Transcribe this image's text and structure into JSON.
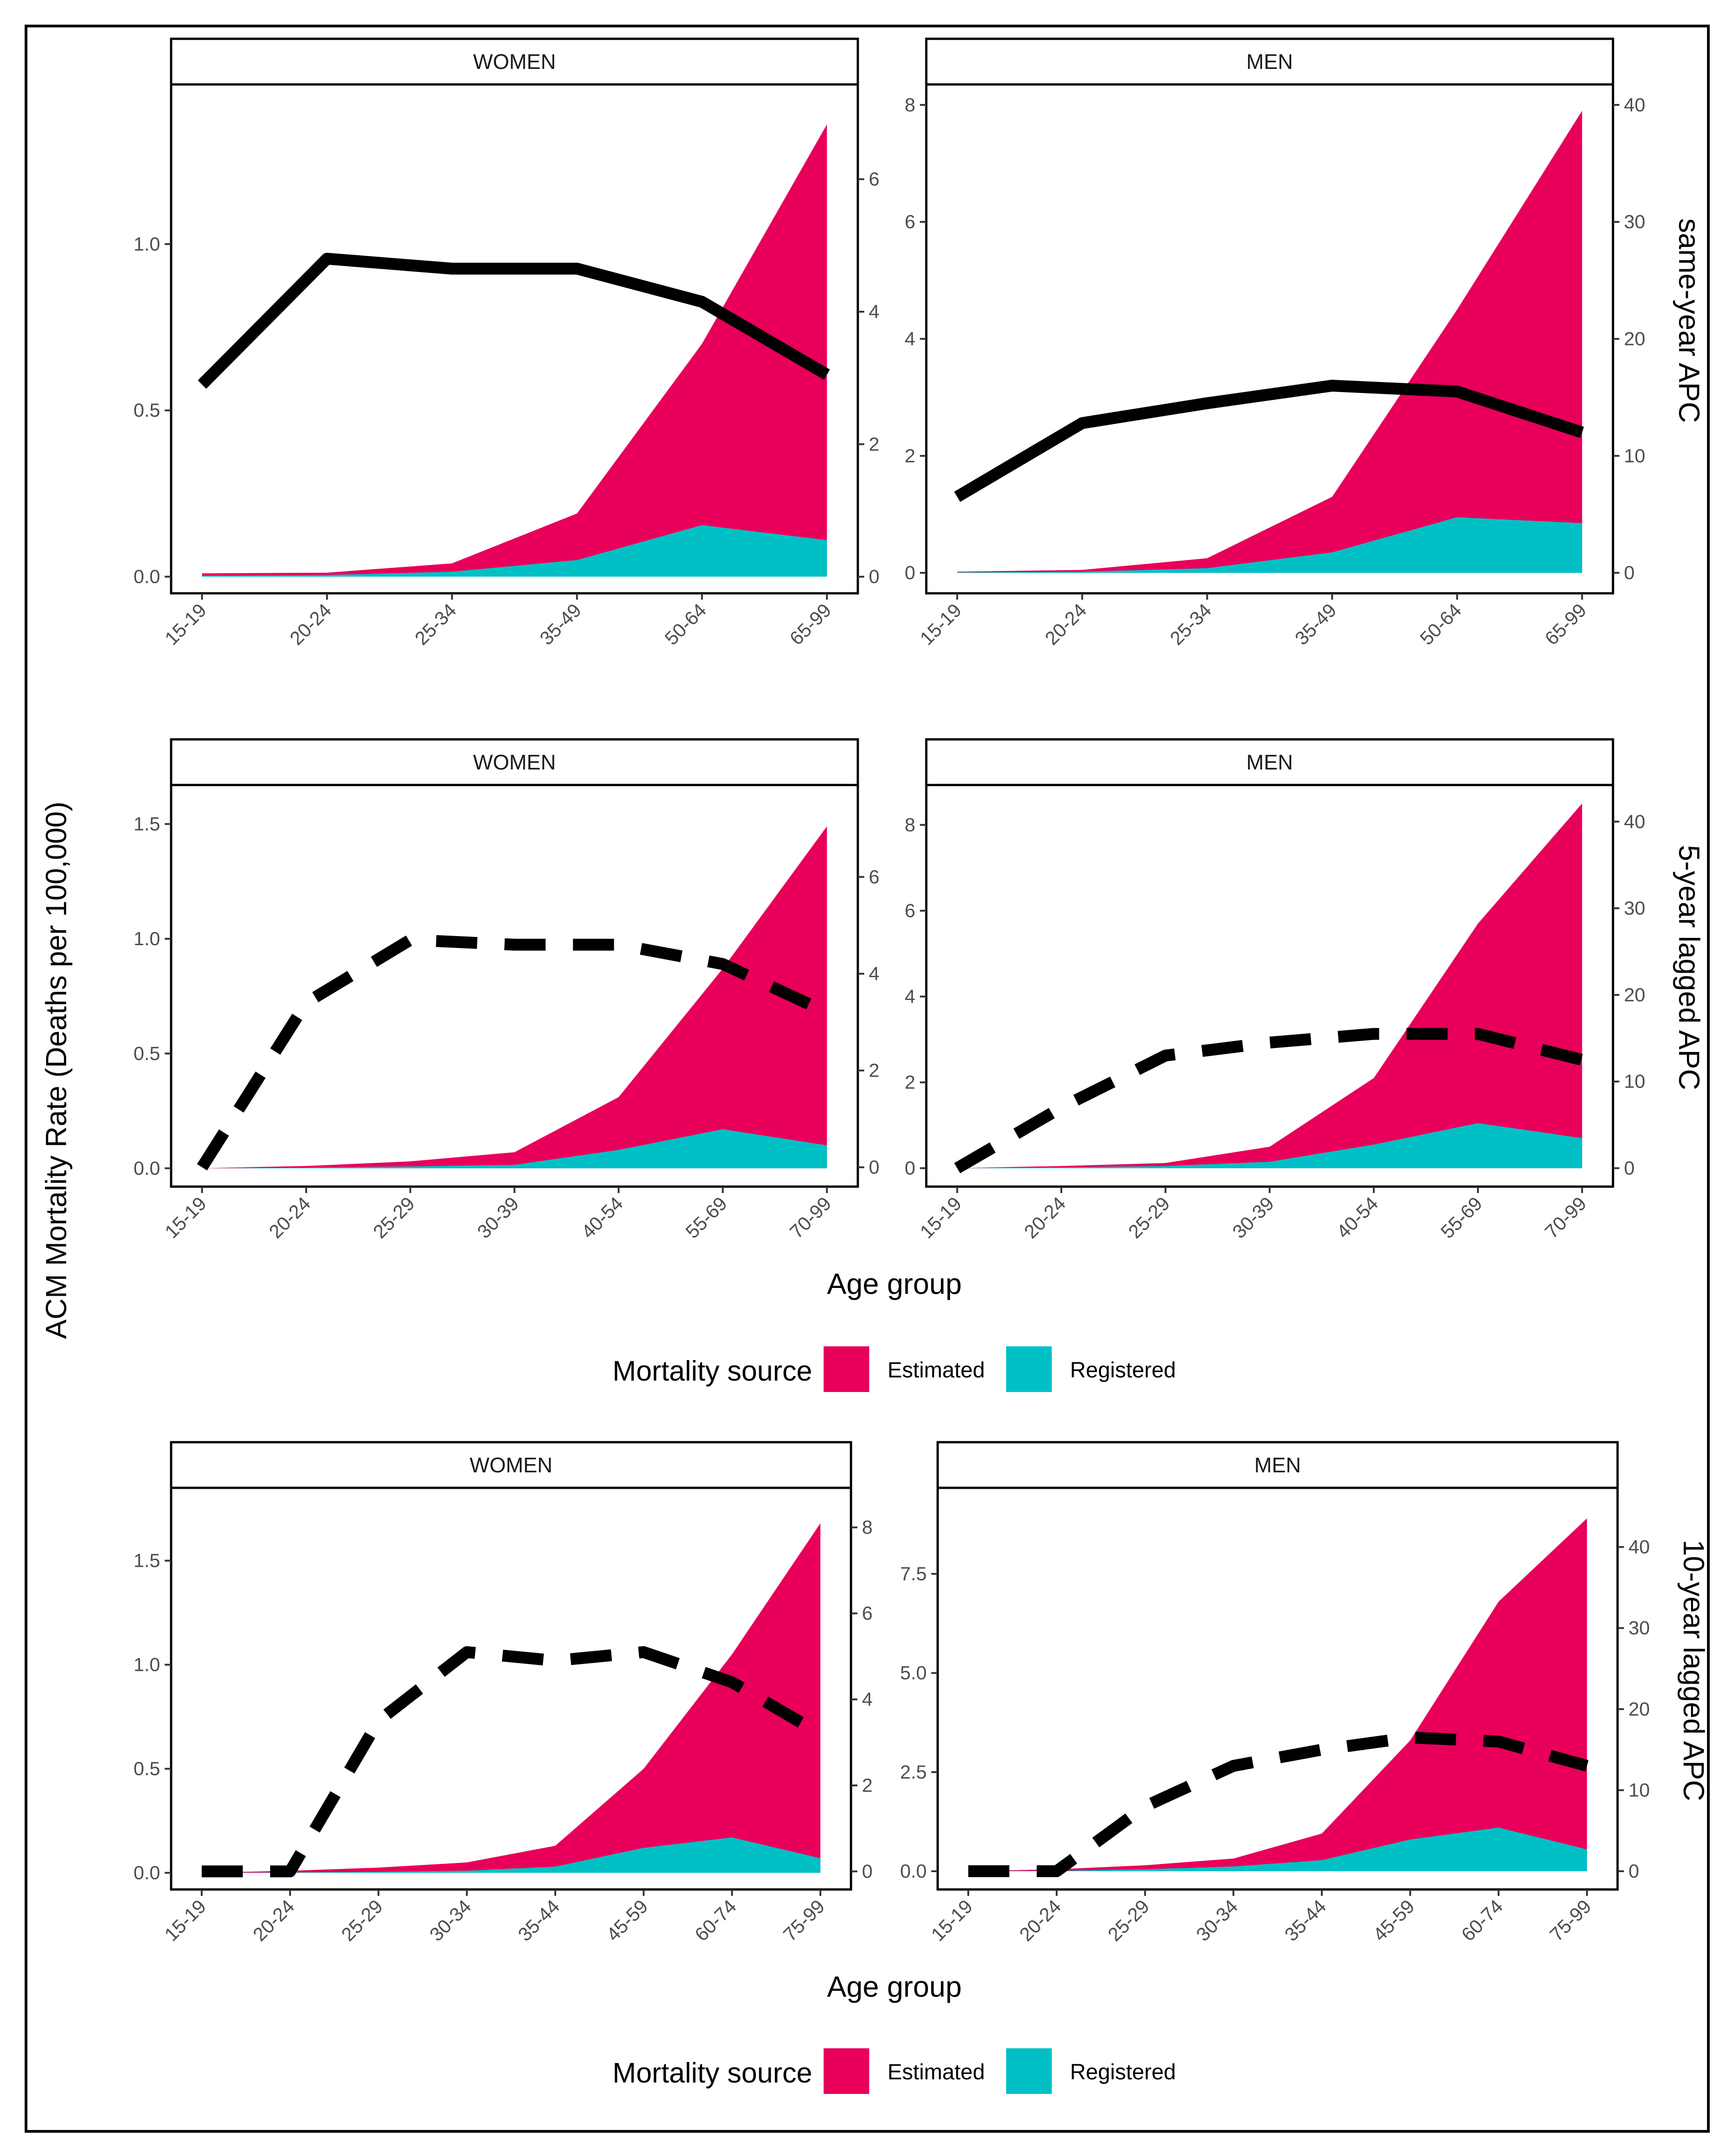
{
  "figure": {
    "y_axis_title": "ACM Mortality Rate (Deaths per 100,000)",
    "x_axis_title": "Age group",
    "legend": {
      "title": "Mortality source",
      "items": [
        {
          "label": "Estimated",
          "color": "#E8005A"
        },
        {
          "label": "Registered",
          "color": "#00C0C6"
        }
      ]
    },
    "line_color": "#000000"
  },
  "chart_data": [
    {
      "type": "area",
      "row": 1,
      "panel": "women",
      "strip": "WOMEN",
      "categories": [
        "15-19",
        "20-24",
        "25-34",
        "35-49",
        "50-64",
        "65-99"
      ],
      "series": [
        {
          "name": "Registered",
          "values": [
            0.003,
            0.005,
            0.015,
            0.05,
            0.155,
            0.11
          ]
        },
        {
          "name": "Estimated",
          "values": [
            0.01,
            0.012,
            0.04,
            0.19,
            0.7,
            1.36
          ]
        }
      ],
      "ylim": [
        -0.05,
        1.48
      ],
      "yticks": [
        0.0,
        0.5,
        1.0
      ],
      "ytick_labels": [
        "0.0",
        "0.5",
        "1.0"
      ],
      "line": {
        "name": "same-year APC",
        "style": "solid",
        "values": [
          2.9,
          4.8,
          4.65,
          4.65,
          4.15,
          3.05
        ]
      },
      "y2lim": [
        -0.25,
        7.43
      ],
      "y2ticks": [
        0,
        2,
        4,
        6
      ],
      "y2tick_labels": [
        "0",
        "2",
        "4",
        "6"
      ]
    },
    {
      "type": "area",
      "row": 1,
      "panel": "men",
      "strip": "MEN",
      "categories": [
        "15-19",
        "20-24",
        "25-34",
        "35-49",
        "50-64",
        "65-99"
      ],
      "series": [
        {
          "name": "Registered",
          "values": [
            0.01,
            0.02,
            0.08,
            0.35,
            0.95,
            0.85
          ]
        },
        {
          "name": "Estimated",
          "values": [
            0.02,
            0.05,
            0.25,
            1.3,
            4.5,
            7.9
          ]
        }
      ],
      "ylim": [
        -0.35,
        8.35
      ],
      "yticks": [
        0,
        2,
        4,
        6,
        8
      ],
      "ytick_labels": [
        "0",
        "2",
        "4",
        "6",
        "8"
      ],
      "line": {
        "name": "same-year APC",
        "style": "solid",
        "values": [
          6.5,
          12.8,
          14.5,
          16,
          15.5,
          12
        ]
      },
      "y2lim": [
        -1.75,
        41.75
      ],
      "y2ticks": [
        0,
        10,
        20,
        30,
        40
      ],
      "y2tick_labels": [
        "0",
        "10",
        "20",
        "30",
        "40"
      ],
      "y2label": "same-year APC"
    },
    {
      "type": "area",
      "row": 2,
      "panel": "women",
      "strip": "WOMEN",
      "categories": [
        "15-19",
        "20-24",
        "25-29",
        "30-39",
        "40-54",
        "55-69",
        "70-99"
      ],
      "series": [
        {
          "name": "Registered",
          "values": [
            0.0,
            0.003,
            0.008,
            0.015,
            0.08,
            0.17,
            0.1
          ]
        },
        {
          "name": "Estimated",
          "values": [
            0.0,
            0.01,
            0.03,
            0.07,
            0.31,
            0.87,
            1.49
          ]
        }
      ],
      "ylim": [
        -0.08,
        1.67
      ],
      "yticks": [
        0.0,
        0.5,
        1.0,
        1.5
      ],
      "ytick_labels": [
        "0.0",
        "0.5",
        "1.0",
        "1.5"
      ],
      "line": {
        "name": "5-year lagged APC",
        "style": "dashed",
        "values": [
          0,
          3.4,
          4.7,
          4.6,
          4.6,
          4.2,
          3.2
        ]
      },
      "y2lim": [
        -0.4,
        7.9
      ],
      "y2ticks": [
        0,
        2,
        4,
        6
      ],
      "y2tick_labels": [
        "0",
        "2",
        "4",
        "6"
      ]
    },
    {
      "type": "area",
      "row": 2,
      "panel": "men",
      "strip": "MEN",
      "categories": [
        "15-19",
        "20-24",
        "25-29",
        "30-39",
        "40-54",
        "55-69",
        "70-99"
      ],
      "series": [
        {
          "name": "Registered",
          "values": [
            0.0,
            0.02,
            0.05,
            0.15,
            0.55,
            1.05,
            0.7
          ]
        },
        {
          "name": "Estimated",
          "values": [
            0.0,
            0.05,
            0.12,
            0.5,
            2.1,
            5.7,
            8.5
          ]
        }
      ],
      "ylim": [
        -0.43,
        8.93
      ],
      "yticks": [
        0,
        2,
        4,
        6,
        8
      ],
      "ytick_labels": [
        "0",
        "2",
        "4",
        "6",
        "8"
      ],
      "line": {
        "name": "5-year lagged APC",
        "style": "dashed",
        "values": [
          0,
          7,
          13,
          14.5,
          15.5,
          15.5,
          12.5
        ]
      },
      "y2lim": [
        -2.13,
        44.23
      ],
      "y2ticks": [
        0,
        10,
        20,
        30,
        40
      ],
      "y2tick_labels": [
        "0",
        "10",
        "20",
        "30",
        "40"
      ],
      "y2label": "5-year lagged APC"
    },
    {
      "type": "area",
      "row": 3,
      "panel": "women",
      "strip": "WOMEN",
      "categories": [
        "15-19",
        "20-24",
        "25-29",
        "30-34",
        "35-44",
        "45-59",
        "60-74",
        "75-99"
      ],
      "series": [
        {
          "name": "Registered",
          "values": [
            0.0,
            0.002,
            0.005,
            0.01,
            0.03,
            0.12,
            0.17,
            0.07
          ]
        },
        {
          "name": "Estimated",
          "values": [
            0.0,
            0.01,
            0.025,
            0.05,
            0.13,
            0.5,
            1.05,
            1.68
          ]
        }
      ],
      "ylim": [
        -0.08,
        1.85
      ],
      "yticks": [
        0.0,
        0.5,
        1.0,
        1.5
      ],
      "ytick_labels": [
        "0.0",
        "0.5",
        "1.0",
        "1.5"
      ],
      "line": {
        "name": "10-year lagged APC",
        "style": "dashed",
        "values": [
          0,
          0,
          3.5,
          5.1,
          4.9,
          5.1,
          4.4,
          3.2
        ]
      },
      "y2lim": [
        -0.42,
        8.92
      ],
      "y2ticks": [
        0,
        2,
        4,
        6,
        8
      ],
      "y2tick_labels": [
        "0",
        "2",
        "4",
        "6",
        "8"
      ]
    },
    {
      "type": "area",
      "row": 3,
      "panel": "men",
      "strip": "MEN",
      "categories": [
        "15-19",
        "20-24",
        "25-29",
        "30-34",
        "35-44",
        "45-59",
        "60-74",
        "75-99"
      ],
      "series": [
        {
          "name": "Registered",
          "values": [
            0.0,
            0.01,
            0.05,
            0.12,
            0.28,
            0.8,
            1.1,
            0.55
          ]
        },
        {
          "name": "Estimated",
          "values": [
            0.0,
            0.05,
            0.15,
            0.32,
            0.95,
            3.3,
            6.8,
            8.9
          ]
        }
      ],
      "ylim": [
        -0.46,
        9.67
      ],
      "yticks": [
        0.0,
        2.5,
        5.0,
        7.5
      ],
      "ytick_labels": [
        "0.0",
        "2.5",
        "5.0",
        "7.5"
      ],
      "line": {
        "name": "10-year lagged APC",
        "style": "dashed",
        "values": [
          0,
          0,
          8,
          13,
          15,
          16.5,
          16,
          13
        ]
      },
      "y2lim": [
        -2.25,
        47.3
      ],
      "y2ticks": [
        0,
        10,
        20,
        30,
        40
      ],
      "y2tick_labels": [
        "0",
        "10",
        "20",
        "30",
        "40"
      ],
      "y2label": "10-year lagged APC"
    }
  ]
}
